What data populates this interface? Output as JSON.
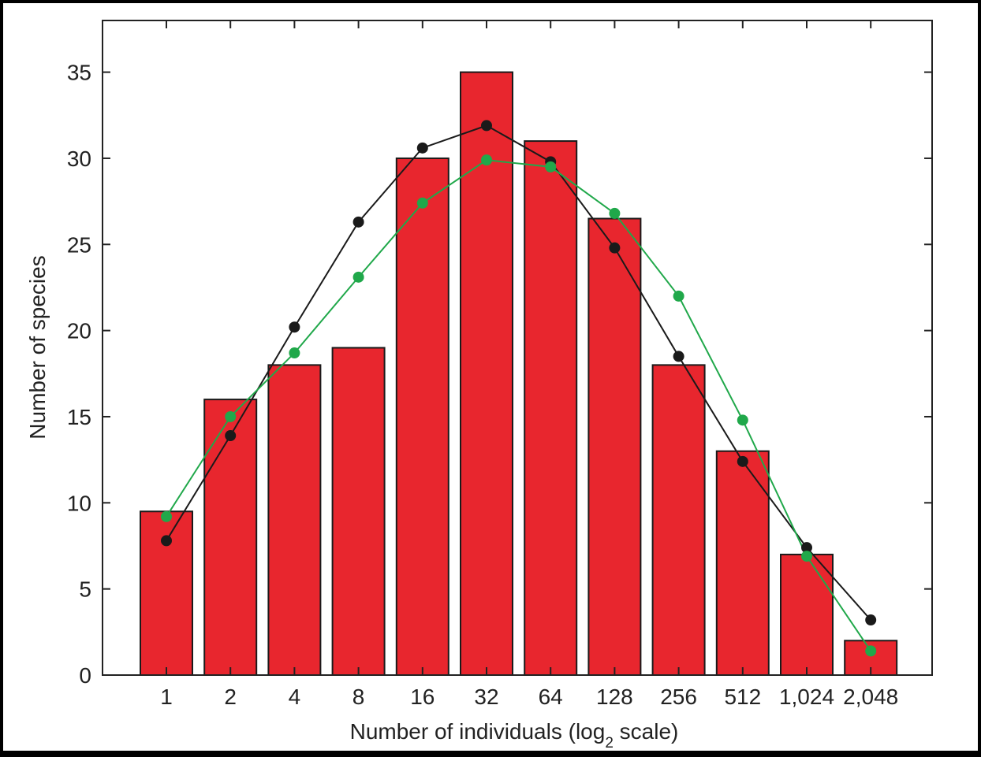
{
  "chart_data": {
    "type": "bar",
    "categories": [
      "1",
      "2",
      "4",
      "8",
      "16",
      "32",
      "64",
      "128",
      "256",
      "512",
      "1,024",
      "2,048"
    ],
    "values": [
      9.5,
      16,
      18,
      19,
      30,
      35,
      31,
      26.5,
      18,
      13,
      7,
      2
    ],
    "series": [
      {
        "type": "line",
        "color": "#1a1a1a",
        "values": [
          7.8,
          13.9,
          20.2,
          26.3,
          30.6,
          31.9,
          29.8,
          24.8,
          18.5,
          12.4,
          7.4,
          3.2
        ]
      },
      {
        "type": "line",
        "color": "#20a84a",
        "values": [
          9.2,
          15.0,
          18.7,
          23.1,
          27.4,
          29.9,
          29.5,
          26.8,
          22.0,
          14.8,
          6.9,
          1.4
        ]
      }
    ],
    "bar_color": "#e8262e",
    "xlabel": "Number of individuals (log",
    "xlabel_sub": "2",
    "xlabel_end": " scale)",
    "ylabel": "Number of species",
    "ylim": [
      0,
      38
    ],
    "yticks": [
      "0",
      "5",
      "10",
      "15",
      "20",
      "25",
      "30",
      "35"
    ],
    "grid": false
  }
}
